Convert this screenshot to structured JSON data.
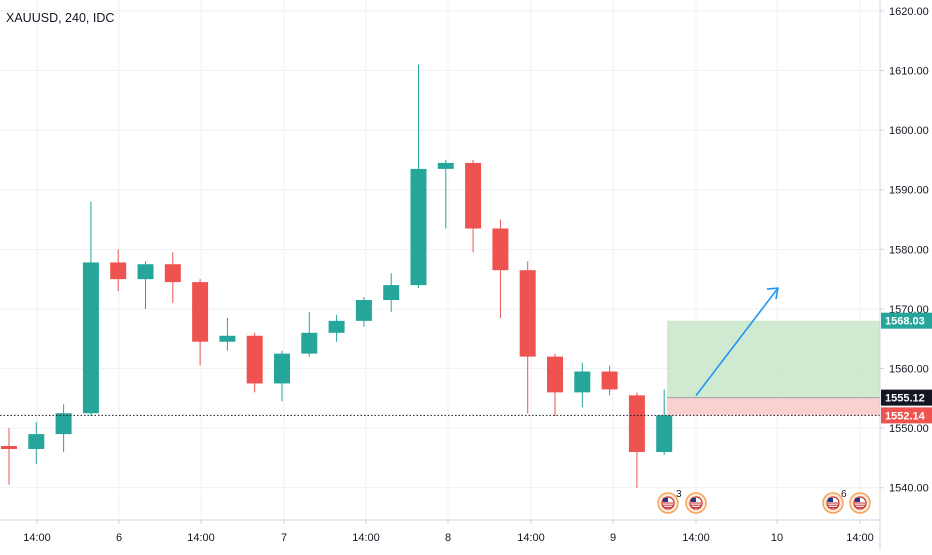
{
  "title": "XAUUSD, 240, IDC",
  "colors": {
    "up": "#26a69a",
    "down": "#ef5350",
    "grid": "#eef1f5",
    "text": "#131722",
    "arrow": "#2196f3",
    "profit_zone": "#c8e6c9",
    "loss_zone": "#f8cccc",
    "price_line": "#131722"
  },
  "chart_data": {
    "type": "candlestick",
    "symbol": "XAUUSD",
    "interval": "240",
    "source": "IDC",
    "ylim": [
      1532,
      1622
    ],
    "y_ticks": [
      "1540.00",
      "1550.00",
      "1560.00",
      "1570.00",
      "1580.00",
      "1590.00",
      "1600.00",
      "1610.00",
      "1620.00"
    ],
    "x_ticks": [
      "14:00",
      "6",
      "14:00",
      "7",
      "14:00",
      "8",
      "14:00",
      "9",
      "14:00",
      "10",
      "14:00"
    ],
    "candles": [
      {
        "o": 1547.0,
        "h": 1550.0,
        "l": 1540.5,
        "c": 1546.5
      },
      {
        "o": 1546.5,
        "h": 1551.0,
        "l": 1544.0,
        "c": 1549.0
      },
      {
        "o": 1549.0,
        "h": 1554.0,
        "l": 1546.0,
        "c": 1552.5
      },
      {
        "o": 1552.5,
        "h": 1588.0,
        "l": 1552.0,
        "c": 1577.8
      },
      {
        "o": 1577.8,
        "h": 1580.0,
        "l": 1573.0,
        "c": 1575.0
      },
      {
        "o": 1575.0,
        "h": 1578.0,
        "l": 1570.0,
        "c": 1577.5
      },
      {
        "o": 1577.5,
        "h": 1579.5,
        "l": 1571.0,
        "c": 1574.5
      },
      {
        "o": 1574.5,
        "h": 1575.0,
        "l": 1560.5,
        "c": 1564.5
      },
      {
        "o": 1564.5,
        "h": 1568.5,
        "l": 1563.0,
        "c": 1565.5
      },
      {
        "o": 1565.5,
        "h": 1566.0,
        "l": 1556.0,
        "c": 1557.5
      },
      {
        "o": 1557.5,
        "h": 1563.0,
        "l": 1554.5,
        "c": 1562.5
      },
      {
        "o": 1562.5,
        "h": 1569.5,
        "l": 1562.0,
        "c": 1566.0
      },
      {
        "o": 1566.0,
        "h": 1569.0,
        "l": 1564.5,
        "c": 1568.0
      },
      {
        "o": 1568.0,
        "h": 1572.0,
        "l": 1567.0,
        "c": 1571.5
      },
      {
        "o": 1571.5,
        "h": 1576.0,
        "l": 1569.5,
        "c": 1574.0
      },
      {
        "o": 1574.0,
        "h": 1611.0,
        "l": 1573.5,
        "c": 1593.5
      },
      {
        "o": 1593.5,
        "h": 1595.0,
        "l": 1583.5,
        "c": 1594.5
      },
      {
        "o": 1594.5,
        "h": 1595.0,
        "l": 1579.5,
        "c": 1583.5
      },
      {
        "o": 1583.5,
        "h": 1585.0,
        "l": 1568.5,
        "c": 1576.5
      },
      {
        "o": 1576.5,
        "h": 1578.0,
        "l": 1552.5,
        "c": 1562.0
      },
      {
        "o": 1562.0,
        "h": 1562.5,
        "l": 1552.0,
        "c": 1556.0
      },
      {
        "o": 1556.0,
        "h": 1561.0,
        "l": 1553.5,
        "c": 1559.5
      },
      {
        "o": 1559.5,
        "h": 1560.5,
        "l": 1555.5,
        "c": 1556.5
      },
      {
        "o": 1555.5,
        "h": 1556.0,
        "l": 1540.0,
        "c": 1546.0
      },
      {
        "o": 1546.0,
        "h": 1556.5,
        "l": 1545.5,
        "c": 1552.14
      }
    ],
    "position": {
      "entry": 1555.12,
      "target": 1568.03,
      "stop": 1552.14
    },
    "price_labels": [
      {
        "text": "1568.03",
        "value": 1568.03,
        "color": "#26a69a"
      },
      {
        "text": "1555.12",
        "value": 1555.12,
        "color": "#131722"
      },
      {
        "text": "1552.14",
        "value": 1552.14,
        "color": "#ef5350"
      }
    ],
    "event_markers": [
      {
        "count": "3"
      },
      {
        "count": ""
      },
      {
        "count": "6"
      },
      {
        "count": ""
      }
    ],
    "grid": true
  }
}
